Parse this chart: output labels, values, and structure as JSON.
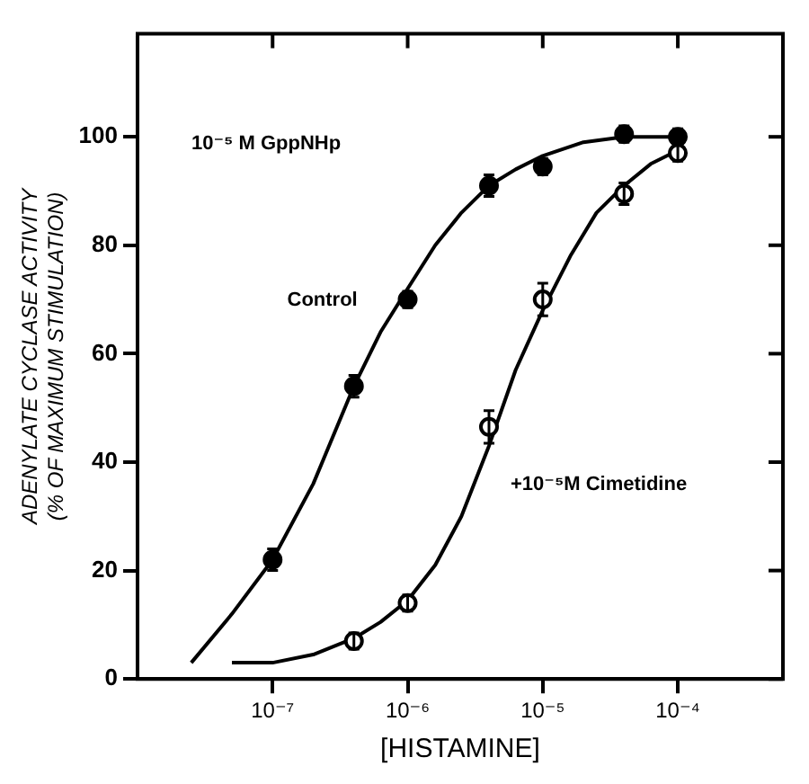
{
  "chart_data": {
    "type": "scatter",
    "xlabel": "[HISTAMINE]",
    "ylabel": "ADENYLATE CYCLASE ACTIVITY\n(% OF MAXIMUM STIMULATION)",
    "log": "x",
    "grid": false,
    "legend": false,
    "xlim": [
      1e-08,
      0.0006
    ],
    "xticks": [
      {
        "value": 1e-07,
        "label": "10⁻⁷"
      },
      {
        "value": 1e-06,
        "label": "10⁻⁶"
      },
      {
        "value": 1e-05,
        "label": "10⁻⁵"
      },
      {
        "value": 0.0001,
        "label": "10⁻⁴"
      }
    ],
    "ylim": [
      0,
      119
    ],
    "yticks": [
      0,
      20,
      40,
      60,
      80,
      100
    ],
    "annotations": [
      "10⁻⁵ M GppNHp"
    ],
    "series": [
      {
        "name": "Control",
        "marker": "circle",
        "color": "#000000",
        "x": [
          1e-07,
          4e-07,
          1e-06,
          4e-06,
          1e-05,
          4e-05,
          0.0001
        ],
        "values": [
          22,
          54,
          70,
          91,
          94.5,
          100.5,
          100
        ],
        "errors": [
          2,
          2,
          1.5,
          2,
          1.5,
          1.5,
          1.5
        ]
      },
      {
        "name": "+10⁻⁵M Cimetidine",
        "marker": "circle",
        "color": "#000000",
        "x": [
          4e-07,
          1e-06,
          4e-06,
          1e-05,
          4e-05,
          0.0001
        ],
        "values": [
          7,
          14,
          46.5,
          70,
          89.5,
          97
        ],
        "errors": [
          1.5,
          1.5,
          3,
          3,
          2,
          1.5
        ]
      },
      {
        "type": "line",
        "marker": "none",
        "color": "#000000",
        "x": [
          2.5e-08,
          5e-08,
          1e-07,
          2e-07,
          4e-07,
          6.3e-07,
          1e-06,
          1.6e-06,
          2.5e-06,
          4e-06,
          6.3e-06,
          1e-05,
          2e-05,
          4e-05,
          0.0001
        ],
        "values": [
          3,
          12,
          22,
          36,
          54,
          64,
          72,
          80,
          86,
          91,
          94,
          96.5,
          99,
          100,
          100
        ]
      },
      {
        "type": "line",
        "marker": "none",
        "color": "#000000",
        "x": [
          5e-08,
          1e-07,
          2e-07,
          4e-07,
          6.3e-07,
          1e-06,
          1.6e-06,
          2.5e-06,
          4e-06,
          6.3e-06,
          1e-05,
          1.6e-05,
          2.5e-05,
          4e-05,
          6.3e-05,
          0.0001
        ],
        "values": [
          3,
          3,
          4.5,
          7.5,
          10.5,
          14.5,
          21,
          30,
          43,
          57,
          68,
          78,
          86,
          91,
          95,
          97.5
        ]
      }
    ]
  }
}
